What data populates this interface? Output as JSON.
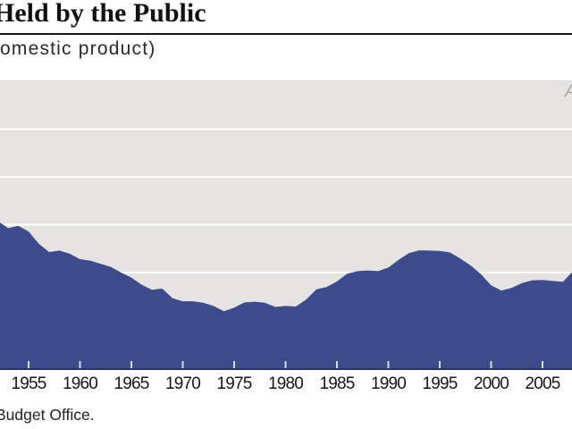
{
  "header": {
    "title_fragment": "Held by the Public",
    "subtitle_fragment": "omestic product)"
  },
  "footer": {
    "source_fragment": "Budget Office."
  },
  "annotations": {
    "top_right_label_fragment": "A"
  },
  "chart_data": {
    "type": "area",
    "title_visible": "Held by the Public",
    "subtitle_visible": "omestic product)",
    "source_visible": "Budget Office.",
    "x": [
      1952,
      1953,
      1954,
      1955,
      1956,
      1957,
      1958,
      1959,
      1960,
      1961,
      1962,
      1963,
      1964,
      1965,
      1966,
      1967,
      1968,
      1969,
      1970,
      1971,
      1972,
      1973,
      1974,
      1975,
      1976,
      1977,
      1978,
      1979,
      1980,
      1981,
      1982,
      1983,
      1984,
      1985,
      1986,
      1987,
      1988,
      1989,
      1990,
      1991,
      1992,
      1993,
      1994,
      1995,
      1996,
      1997,
      1998,
      1999,
      2000,
      2001,
      2002,
      2003,
      2004,
      2005,
      2006,
      2007,
      2008
    ],
    "values": [
      61.6,
      58.6,
      59.5,
      57.2,
      52.0,
      48.6,
      49.2,
      47.9,
      45.6,
      45.0,
      43.7,
      42.4,
      40.0,
      37.9,
      34.9,
      32.8,
      33.3,
      29.3,
      28.0,
      28.0,
      27.4,
      26.0,
      23.8,
      25.3,
      27.5,
      27.8,
      27.4,
      25.6,
      26.1,
      25.8,
      28.7,
      33.0,
      34.0,
      36.3,
      39.5,
      40.6,
      40.9,
      40.6,
      42.1,
      45.3,
      48.1,
      49.3,
      49.2,
      49.1,
      48.4,
      45.9,
      43.0,
      39.4,
      34.7,
      32.5,
      33.6,
      35.6,
      36.8,
      36.9,
      36.5,
      36.2,
      40.8
    ],
    "x_ticks": [
      1955,
      1960,
      1965,
      1970,
      1975,
      1980,
      1985,
      1990,
      1995,
      2000,
      2005
    ],
    "ylim": [
      0,
      120
    ],
    "grid_step": 20,
    "grid": true,
    "legend": "none",
    "colors": {
      "area_fill": "#3d4a8c",
      "plot_background": "#e5e4e2",
      "gridline": "#ffffff",
      "axis_line": "#2e3460",
      "tick_mark": "#f2f3f7",
      "tick_label": "#16161c"
    }
  }
}
